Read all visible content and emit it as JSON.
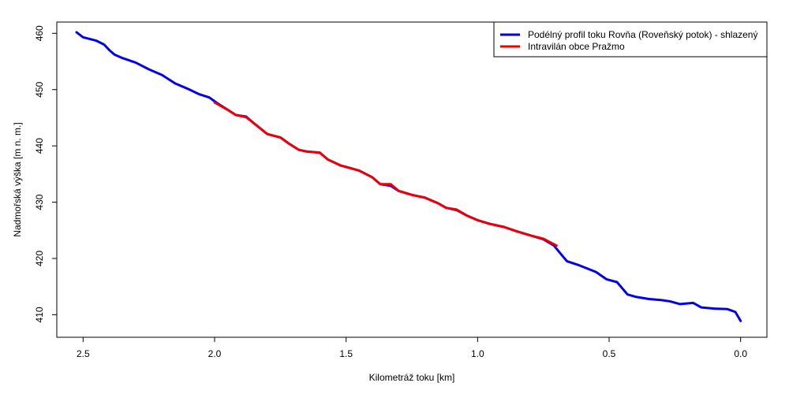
{
  "chart_data": {
    "type": "line",
    "title": "",
    "xlabel": "Kilometráž toku [km]",
    "ylabel": "Nadmořská výška [m n. m.]",
    "x_reversed": true,
    "xlim": [
      2.6,
      -0.1
    ],
    "ylim": [
      406,
      462
    ],
    "x_ticks": [
      2.5,
      2.0,
      1.5,
      1.0,
      0.5,
      0.0
    ],
    "x_tick_labels": [
      "2.5",
      "2.0",
      "1.5",
      "1.0",
      "0.5",
      "0.0"
    ],
    "y_ticks": [
      410,
      420,
      430,
      440,
      450,
      460
    ],
    "y_tick_labels": [
      "410",
      "420",
      "430",
      "440",
      "450",
      "460"
    ],
    "grid": false,
    "legend_position": "top-right",
    "series": [
      {
        "name": "Podélný profil toku Rovňa (Roveňský potok) - shlazený",
        "color": "#0000ee",
        "points": [
          [
            2.525,
            460.2
          ],
          [
            2.5,
            459.3
          ],
          [
            2.45,
            458.7
          ],
          [
            2.42,
            458.0
          ],
          [
            2.4,
            457.0
          ],
          [
            2.38,
            456.2
          ],
          [
            2.35,
            455.6
          ],
          [
            2.3,
            454.8
          ],
          [
            2.25,
            453.6
          ],
          [
            2.2,
            452.6
          ],
          [
            2.15,
            451.1
          ],
          [
            2.1,
            450.1
          ],
          [
            2.06,
            449.2
          ],
          [
            2.02,
            448.6
          ],
          [
            1.99,
            447.6
          ],
          [
            1.95,
            446.4
          ],
          [
            1.92,
            445.5
          ],
          [
            1.88,
            445.2
          ],
          [
            1.85,
            444.0
          ],
          [
            1.8,
            442.1
          ],
          [
            1.75,
            441.5
          ],
          [
            1.72,
            440.5
          ],
          [
            1.68,
            439.3
          ],
          [
            1.65,
            439.0
          ],
          [
            1.6,
            438.8
          ],
          [
            1.57,
            437.6
          ],
          [
            1.52,
            436.5
          ],
          [
            1.48,
            436.0
          ],
          [
            1.45,
            435.6
          ],
          [
            1.4,
            434.4
          ],
          [
            1.37,
            433.2
          ],
          [
            1.33,
            432.9
          ],
          [
            1.3,
            432.0
          ],
          [
            1.25,
            431.3
          ],
          [
            1.2,
            430.8
          ],
          [
            1.15,
            429.8
          ],
          [
            1.12,
            429.0
          ],
          [
            1.08,
            428.6
          ],
          [
            1.04,
            427.6
          ],
          [
            1.0,
            426.8
          ],
          [
            0.95,
            426.1
          ],
          [
            0.9,
            425.6
          ],
          [
            0.85,
            424.8
          ],
          [
            0.8,
            424.1
          ],
          [
            0.75,
            423.4
          ],
          [
            0.71,
            422.3
          ],
          [
            0.68,
            420.6
          ],
          [
            0.66,
            419.5
          ],
          [
            0.62,
            418.9
          ],
          [
            0.55,
            417.6
          ],
          [
            0.51,
            416.3
          ],
          [
            0.47,
            415.8
          ],
          [
            0.45,
            414.7
          ],
          [
            0.43,
            413.6
          ],
          [
            0.4,
            413.2
          ],
          [
            0.35,
            412.8
          ],
          [
            0.3,
            412.6
          ],
          [
            0.27,
            412.4
          ],
          [
            0.23,
            411.9
          ],
          [
            0.18,
            412.1
          ],
          [
            0.15,
            411.3
          ],
          [
            0.1,
            411.1
          ],
          [
            0.05,
            411.0
          ],
          [
            0.02,
            410.5
          ],
          [
            0.0,
            408.9
          ]
        ]
      },
      {
        "name": "Intravilán obce Pražmo",
        "color": "#ee0000",
        "points": [
          [
            2.0,
            447.7
          ],
          [
            1.95,
            446.4
          ],
          [
            1.92,
            445.5
          ],
          [
            1.88,
            445.1
          ],
          [
            1.85,
            444.0
          ],
          [
            1.8,
            442.1
          ],
          [
            1.75,
            441.5
          ],
          [
            1.72,
            440.5
          ],
          [
            1.68,
            439.3
          ],
          [
            1.65,
            439.0
          ],
          [
            1.6,
            438.8
          ],
          [
            1.57,
            437.6
          ],
          [
            1.52,
            436.5
          ],
          [
            1.48,
            436.0
          ],
          [
            1.45,
            435.6
          ],
          [
            1.4,
            434.4
          ],
          [
            1.37,
            433.2
          ],
          [
            1.33,
            433.2
          ],
          [
            1.3,
            432.0
          ],
          [
            1.25,
            431.3
          ],
          [
            1.2,
            430.8
          ],
          [
            1.15,
            429.8
          ],
          [
            1.12,
            429.0
          ],
          [
            1.08,
            428.7
          ],
          [
            1.04,
            427.6
          ],
          [
            1.0,
            426.8
          ],
          [
            0.95,
            426.1
          ],
          [
            0.9,
            425.6
          ],
          [
            0.85,
            424.8
          ],
          [
            0.8,
            424.1
          ],
          [
            0.75,
            423.5
          ],
          [
            0.7,
            422.3
          ]
        ]
      }
    ]
  }
}
